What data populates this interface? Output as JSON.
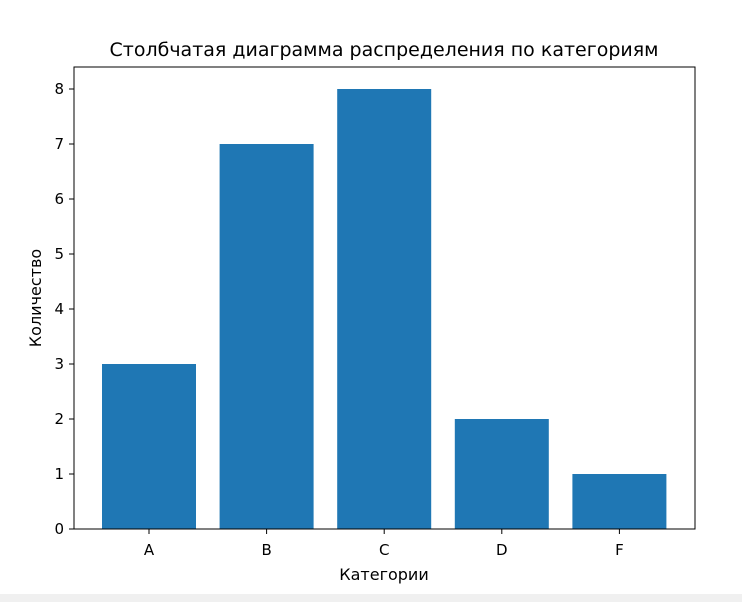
{
  "chart_data": {
    "type": "bar",
    "title": "Столбчатая диаграмма распределения по категориям",
    "xlabel": "Категории",
    "ylabel": "Количество",
    "categories": [
      "A",
      "B",
      "C",
      "D",
      "F"
    ],
    "values": [
      3,
      7,
      8,
      2,
      1
    ],
    "ylim": [
      0,
      8.4
    ],
    "yticks": [
      "0",
      "1",
      "2",
      "3",
      "4",
      "5",
      "6",
      "7",
      "8"
    ],
    "grid": false,
    "bar_color": "#1f77b4"
  }
}
